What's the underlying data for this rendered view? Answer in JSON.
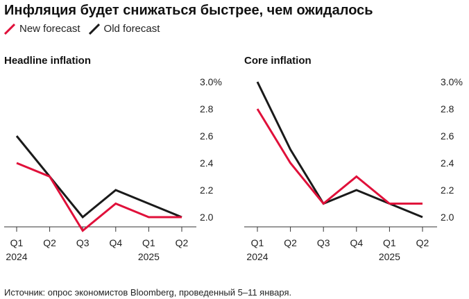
{
  "title": "Инфляция будет снижаться быстрее, чем ожидалось",
  "legend": [
    {
      "label": "New forecast",
      "color": "#e0103a"
    },
    {
      "label": "Old forecast",
      "color": "#1a1a1a"
    }
  ],
  "source": "Источник: опрос экономистов Bloomberg, проведенный 5–11 января.",
  "chart_data": [
    {
      "type": "line",
      "title": "Headline inflation",
      "categories": [
        "Q1",
        "Q2",
        "Q3",
        "Q4",
        "Q1",
        "Q2"
      ],
      "year_labels": [
        "2024",
        "",
        "",
        "",
        "2025",
        ""
      ],
      "ylim": [
        1.9,
        3.0
      ],
      "yticks": [
        "3.0%",
        "2.8",
        "2.6",
        "2.4",
        "2.2",
        "2.0"
      ],
      "ytick_values": [
        3.0,
        2.8,
        2.6,
        2.4,
        2.2,
        2.0
      ],
      "grid": false,
      "series": [
        {
          "name": "New forecast",
          "color": "#e0103a",
          "values": [
            2.4,
            2.3,
            1.9,
            2.1,
            2.0,
            2.0
          ]
        },
        {
          "name": "Old forecast",
          "color": "#1a1a1a",
          "values": [
            2.6,
            2.3,
            2.0,
            2.2,
            2.1,
            2.0
          ]
        }
      ]
    },
    {
      "type": "line",
      "title": "Core inflation",
      "categories": [
        "Q1",
        "Q2",
        "Q3",
        "Q4",
        "Q1",
        "Q2"
      ],
      "year_labels": [
        "2024",
        "",
        "",
        "",
        "2025",
        ""
      ],
      "ylim": [
        1.9,
        3.0
      ],
      "yticks": [
        "3.0%",
        "2.8",
        "2.6",
        "2.4",
        "2.2",
        "2.0"
      ],
      "ytick_values": [
        3.0,
        2.8,
        2.6,
        2.4,
        2.2,
        2.0
      ],
      "grid": false,
      "series": [
        {
          "name": "New forecast",
          "color": "#e0103a",
          "values": [
            2.8,
            2.4,
            2.1,
            2.3,
            2.1,
            2.1
          ]
        },
        {
          "name": "Old forecast",
          "color": "#1a1a1a",
          "values": [
            3.0,
            2.5,
            2.1,
            2.2,
            2.1,
            2.0
          ]
        }
      ]
    }
  ]
}
